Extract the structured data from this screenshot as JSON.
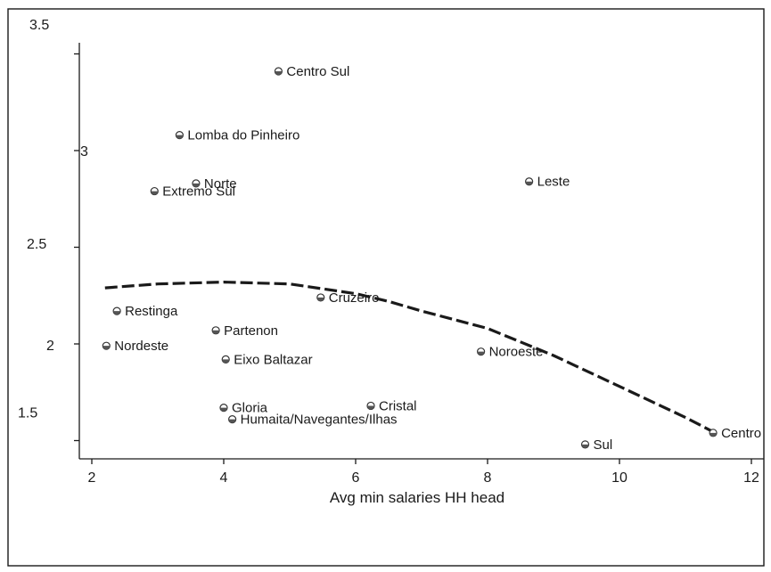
{
  "chart_data": {
    "type": "scatter",
    "title": "",
    "xlabel": "Avg min salaries HH head",
    "ylabel": "",
    "xlim": [
      1.8,
      12.2
    ],
    "ylim": [
      1.35,
      3.6
    ],
    "grid": false,
    "x_ticks": [
      {
        "value": 2,
        "label": "2"
      },
      {
        "value": 4,
        "label": "4"
      },
      {
        "value": 6,
        "label": "6"
      },
      {
        "value": 8,
        "label": "8"
      },
      {
        "value": 10,
        "label": "10"
      },
      {
        "value": 12,
        "label": "12"
      }
    ],
    "y_ticks": [
      {
        "value": 1.5,
        "label": "1.5"
      },
      {
        "value": 2,
        "label": "2"
      },
      {
        "value": 2.5,
        "label": "2.5"
      },
      {
        "value": 3,
        "label": "3"
      },
      {
        "value": 3.5,
        "label": "3.5"
      }
    ],
    "points": [
      {
        "label": "Centro Sul",
        "x": 4.83,
        "y": 3.41
      },
      {
        "label": "Lomba do Pinheiro",
        "x": 3.33,
        "y": 3.08
      },
      {
        "label": "Norte",
        "x": 3.58,
        "y": 2.83
      },
      {
        "label": "Extremo Sul",
        "x": 2.95,
        "y": 2.79
      },
      {
        "label": "Leste",
        "x": 8.63,
        "y": 2.84
      },
      {
        "label": "Cruzeiro",
        "x": 5.47,
        "y": 2.24
      },
      {
        "label": "Restinga",
        "x": 2.38,
        "y": 2.17
      },
      {
        "label": "Partenon",
        "x": 3.88,
        "y": 2.07
      },
      {
        "label": "Nordeste",
        "x": 2.22,
        "y": 1.99
      },
      {
        "label": "Noroeste",
        "x": 7.9,
        "y": 1.96
      },
      {
        "label": "Eixo Baltazar",
        "x": 4.03,
        "y": 1.92
      },
      {
        "label": "Gloria",
        "x": 4.0,
        "y": 1.67
      },
      {
        "label": "Cristal",
        "x": 6.23,
        "y": 1.68
      },
      {
        "label": "Humaita/Navegantes/Ilhas",
        "x": 4.13,
        "y": 1.61
      },
      {
        "label": "Sul",
        "x": 9.48,
        "y": 1.48
      },
      {
        "label": "Centro",
        "x": 11.42,
        "y": 1.54
      }
    ],
    "fit_line": {
      "style": "dashed",
      "x": [
        2.2,
        3,
        4,
        5,
        6,
        6.5,
        7,
        8,
        9,
        10,
        11,
        11.45
      ],
      "y": [
        2.29,
        2.31,
        2.32,
        2.31,
        2.26,
        2.22,
        2.17,
        2.08,
        1.94,
        1.78,
        1.62,
        1.54
      ]
    }
  }
}
